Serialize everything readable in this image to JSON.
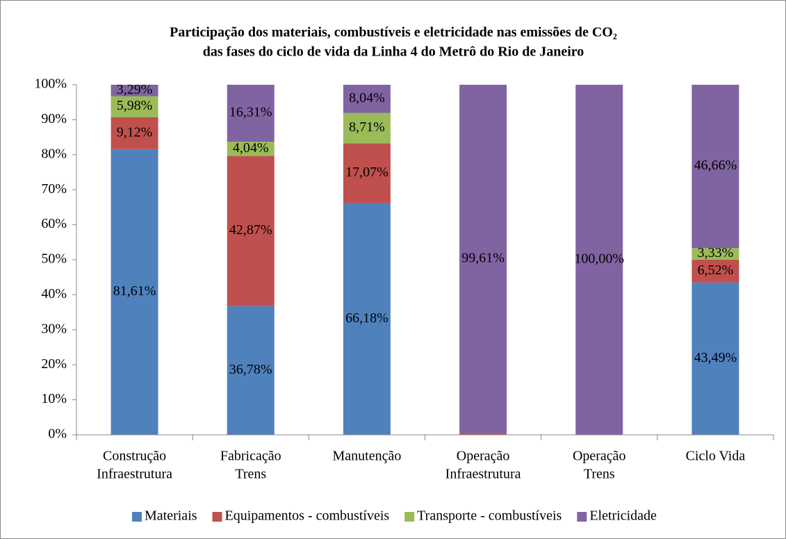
{
  "chart_data": {
    "type": "stacked_bar",
    "title": [
      "Participação dos materiais, combustíveis e eletricidade nas emissões de CO₂",
      "das fases do ciclo de vida da Linha 4 do Metrô do Rio de Janeiro"
    ],
    "categories": [
      [
        "Construção",
        "Infraestrutura"
      ],
      [
        "Fabricação",
        "Trens"
      ],
      [
        "Manutenção"
      ],
      [
        "Operação",
        "Infraestrutura"
      ],
      [
        "Operação",
        "Trens"
      ],
      [
        "Ciclo Vida"
      ]
    ],
    "series": [
      {
        "name": "Materiais",
        "color": "#4f81bd",
        "values": [
          81.61,
          36.78,
          66.18,
          0,
          0,
          43.49
        ],
        "value_labels": [
          "81,61%",
          "36,78%",
          "66,18%",
          null,
          null,
          "43,49%"
        ]
      },
      {
        "name": "Equipamentos - combustíveis",
        "color": "#c0504d",
        "values": [
          9.12,
          42.87,
          17.07,
          0.39,
          0,
          6.52
        ],
        "value_labels": [
          "9,12%",
          "42,87%",
          "17,07%",
          null,
          null,
          "6,52%"
        ]
      },
      {
        "name": "Transporte - combustíveis",
        "color": "#9bbb59",
        "values": [
          5.98,
          4.04,
          8.71,
          0,
          0,
          3.33
        ],
        "value_labels": [
          "5,98%",
          "4,04%",
          "8,71%",
          null,
          null,
          "3,33%"
        ]
      },
      {
        "name": "Eletricidade",
        "color": "#8064a2",
        "values": [
          3.29,
          16.31,
          8.04,
          99.61,
          100.0,
          46.66
        ],
        "value_labels": [
          "3,29%",
          "16,31%",
          "8,04%",
          "99,61%",
          "100,00%",
          "46,66%"
        ]
      }
    ],
    "ylim": [
      0,
      100
    ],
    "yticks": [
      {
        "value": 0,
        "label": "0%"
      },
      {
        "value": 10,
        "label": "10%"
      },
      {
        "value": 20,
        "label": "20%"
      },
      {
        "value": 30,
        "label": "30%"
      },
      {
        "value": 40,
        "label": "40%"
      },
      {
        "value": 50,
        "label": "50%"
      },
      {
        "value": 60,
        "label": "60%"
      },
      {
        "value": 70,
        "label": "70%"
      },
      {
        "value": 80,
        "label": "80%"
      },
      {
        "value": 90,
        "label": "90%"
      },
      {
        "value": 100,
        "label": "100%"
      }
    ],
    "legend": "bottom"
  }
}
